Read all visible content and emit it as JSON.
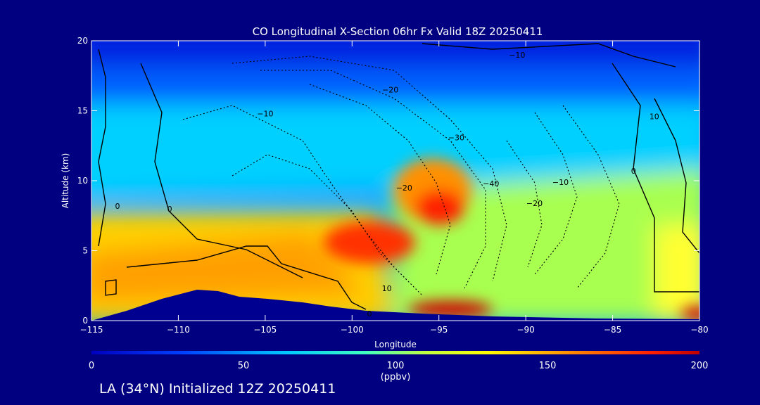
{
  "chart_data": {
    "type": "heatmap",
    "title": "CO Longitudinal X-Section 06hr  Fx Valid 18Z 20250411",
    "xlabel": "Longitude",
    "ylabel": "Altitude (km)",
    "xlim": [
      -115,
      -80
    ],
    "ylim": [
      0,
      20
    ],
    "x_ticks": [
      "-115",
      "-110",
      "-105",
      "-100",
      "-95",
      "-90",
      "-85",
      "-80"
    ],
    "y_ticks": [
      "0",
      "5",
      "10",
      "15",
      "20"
    ],
    "colorbar": {
      "label": "(ppbv)",
      "range": [
        0,
        200
      ],
      "ticks": [
        "0",
        "50",
        "100",
        "150",
        "200"
      ]
    },
    "contour_labels": [
      {
        "text": "-10",
        "x": -90.5,
        "y": 19.0
      },
      {
        "text": "-20",
        "x": -97.8,
        "y": 16.5
      },
      {
        "text": "-10",
        "x": -105.0,
        "y": 14.8
      },
      {
        "text": "-30",
        "x": -94.0,
        "y": 13.1
      },
      {
        "text": "-20",
        "x": -97.0,
        "y": 9.5
      },
      {
        "text": "-40",
        "x": -92.0,
        "y": 9.8
      },
      {
        "text": "-10",
        "x": -88.0,
        "y": 9.9
      },
      {
        "text": "-20",
        "x": -89.5,
        "y": 8.4
      },
      {
        "text": "0",
        "x": -113.5,
        "y": 8.2
      },
      {
        "text": "0",
        "x": -110.5,
        "y": 8.0
      },
      {
        "text": "0",
        "x": -83.8,
        "y": 10.7
      },
      {
        "text": "10",
        "x": -82.6,
        "y": 14.6
      },
      {
        "text": "10",
        "x": -98.0,
        "y": 2.3
      },
      {
        "text": "0",
        "x": -99.0,
        "y": 0.5
      }
    ],
    "grid": false,
    "legend": "colorbar-bottom"
  },
  "footer": "LA (34°N) Initialized 12Z 20250411",
  "colors": {
    "background": "#000080",
    "axes": "#ffffff",
    "low": "#0000c8",
    "high": "#c80000"
  }
}
